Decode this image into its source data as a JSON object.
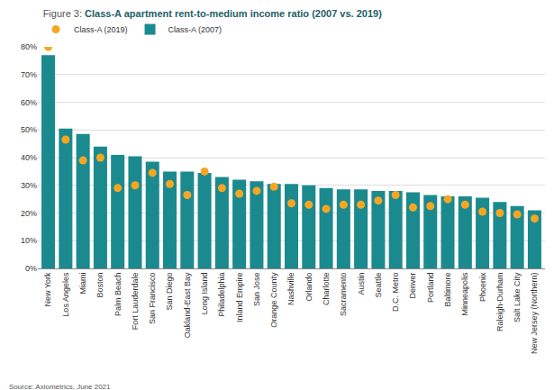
{
  "chart_data": {
    "type": "bar",
    "title": "Figure 3: Class-A apartment rent-to-medium income ratio (2007 vs. 2019)",
    "source": "Source: Axiometrics, June 2021",
    "categories": [
      "New York",
      "Los Angeles",
      "Miami",
      "Boston",
      "Palm Beach",
      "Fort Lauderdale",
      "San Francisco",
      "San Diego",
      "Oakland-East Bay",
      "Long Island",
      "Philadelphia",
      "Inland Empire",
      "San Jose",
      "Orange County",
      "Nashville",
      "Orlando",
      "Charlotte",
      "Sacramento",
      "Austin",
      "Seattle",
      "D.C. Metro",
      "Denver",
      "Portland",
      "Baltimore",
      "Minneapolis",
      "Phoenix",
      "Raleigh-Durham",
      "Salt Lake City",
      "New Jersey (Northern)"
    ],
    "series": [
      {
        "name": "Class-A (2019)",
        "type": "scatter",
        "marker": "circle",
        "color": "#f5a623",
        "values": [
          80,
          46.5,
          39,
          40,
          29,
          30,
          34.5,
          30.5,
          26.5,
          35,
          29,
          27,
          28,
          29.5,
          23.5,
          23,
          21.5,
          23,
          23,
          24.5,
          26.5,
          22,
          22.5,
          25,
          23,
          20.5,
          20,
          19.5,
          18
        ]
      },
      {
        "name": "Class-A (2007)",
        "type": "bar",
        "color": "#1b8a8f",
        "values": [
          77,
          50.5,
          48.5,
          44,
          41,
          40.5,
          38.5,
          35,
          35,
          34.5,
          33,
          32,
          31.5,
          30.5,
          30.5,
          30,
          29,
          28.5,
          28.5,
          28,
          28,
          27.5,
          26.5,
          26,
          26,
          25.5,
          24,
          22.5,
          21
        ]
      }
    ],
    "ylim": [
      0,
      80
    ],
    "yticks": [
      {
        "value": 0,
        "label": "0%"
      },
      {
        "value": 10,
        "label": "10%"
      },
      {
        "value": 20,
        "label": "20%"
      },
      {
        "value": 30,
        "label": "30%"
      },
      {
        "value": 40,
        "label": "40%"
      },
      {
        "value": 50,
        "label": "50%"
      },
      {
        "value": 60,
        "label": "60%"
      },
      {
        "value": 70,
        "label": "70%"
      },
      {
        "value": 80,
        "label": "80%"
      }
    ],
    "grid": true,
    "legend": "top left"
  }
}
